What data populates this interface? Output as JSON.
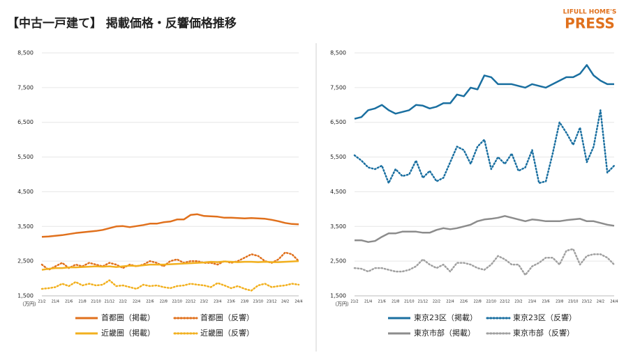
{
  "title": "【中古一戸建て】 掲載価格・反響価格推移",
  "brand": [
    "LIFULL HOME'S",
    "PRESS"
  ],
  "chart_data": [
    {
      "type": "line",
      "ylabel": "（万円）",
      "categories": [
        "21/2",
        null,
        "21/4",
        null,
        "21/6",
        null,
        "21/8",
        null,
        "21/10",
        null,
        "21/12",
        null,
        "22/2",
        null,
        "22/4",
        null,
        "22/6",
        null,
        "22/8",
        null,
        "22/10",
        null,
        "22/12",
        null,
        "23/2",
        null,
        "23/4",
        null,
        "23/6",
        null,
        "23/8",
        null,
        "23/10",
        null,
        "23/12",
        null,
        "24/2",
        null,
        "24/4"
      ],
      "ylim": [
        1500,
        8500
      ],
      "yticks": [
        {
          "value": 1500,
          "label": "1,500"
        },
        {
          "value": 2500,
          "label": "2,500"
        },
        {
          "value": 3500,
          "label": "3,500"
        },
        {
          "value": 4500,
          "label": "4,500"
        },
        {
          "value": 5500,
          "label": "5,500"
        },
        {
          "value": 6500,
          "label": "6,500"
        },
        {
          "value": 7500,
          "label": "7,500"
        },
        {
          "value": 8500,
          "label": "8,500"
        }
      ],
      "series": [
        {
          "name": "首都圏（掲載）",
          "color": "#e0701c",
          "dash": "solid",
          "values": [
            3200,
            3210,
            3230,
            3250,
            3280,
            3310,
            3330,
            3350,
            3370,
            3400,
            3450,
            3500,
            3510,
            3480,
            3510,
            3540,
            3580,
            3580,
            3620,
            3640,
            3700,
            3700,
            3830,
            3850,
            3800,
            3790,
            3780,
            3750,
            3750,
            3740,
            3730,
            3740,
            3730,
            3720,
            3690,
            3650,
            3600,
            3570,
            3560
          ]
        },
        {
          "name": "首都圏（反響）",
          "color": "#e0701c",
          "dash": "dotted",
          "values": [
            2400,
            2250,
            2350,
            2450,
            2300,
            2400,
            2350,
            2450,
            2400,
            2350,
            2450,
            2400,
            2300,
            2400,
            2350,
            2400,
            2500,
            2450,
            2350,
            2500,
            2550,
            2450,
            2500,
            2500,
            2450,
            2450,
            2400,
            2500,
            2450,
            2500,
            2600,
            2700,
            2650,
            2500,
            2450,
            2550,
            2750,
            2700,
            2500
          ]
        },
        {
          "name": "近畿圏（掲載）",
          "color": "#f2b01e",
          "dash": "solid",
          "values": [
            2250,
            2280,
            2300,
            2300,
            2320,
            2320,
            2330,
            2340,
            2350,
            2340,
            2350,
            2330,
            2350,
            2370,
            2360,
            2380,
            2400,
            2400,
            2400,
            2410,
            2420,
            2430,
            2440,
            2450,
            2460,
            2480,
            2470,
            2490,
            2480,
            2470,
            2480,
            2480,
            2470,
            2480,
            2470,
            2470,
            2480,
            2490,
            2500
          ]
        },
        {
          "name": "近畿圏（反響）",
          "color": "#f2b01e",
          "dash": "dotted",
          "values": [
            1700,
            1720,
            1750,
            1850,
            1780,
            1900,
            1800,
            1850,
            1800,
            1820,
            1950,
            1780,
            1800,
            1750,
            1700,
            1820,
            1780,
            1800,
            1750,
            1720,
            1780,
            1800,
            1850,
            1820,
            1800,
            1750,
            1870,
            1800,
            1720,
            1780,
            1700,
            1650,
            1800,
            1850,
            1750,
            1780,
            1800,
            1850,
            1820
          ]
        }
      ]
    },
    {
      "type": "line",
      "ylabel": "（万円）",
      "categories": [
        "21/2",
        null,
        "21/4",
        null,
        "21/6",
        null,
        "21/8",
        null,
        "21/10",
        null,
        "21/12",
        null,
        "22/2",
        null,
        "22/4",
        null,
        "22/6",
        null,
        "22/8",
        null,
        "22/10",
        null,
        "22/12",
        null,
        "23/2",
        null,
        "23/4",
        null,
        "23/6",
        null,
        "23/8",
        null,
        "23/10",
        null,
        "23/12",
        null,
        "24/2",
        null,
        "24/4"
      ],
      "ylim": [
        1500,
        8500
      ],
      "yticks": [
        {
          "value": 1500,
          "label": "1,500"
        },
        {
          "value": 2500,
          "label": "2,500"
        },
        {
          "value": 3500,
          "label": "3,500"
        },
        {
          "value": 4500,
          "label": "4,500"
        },
        {
          "value": 5500,
          "label": "5,500"
        },
        {
          "value": 6500,
          "label": "6,500"
        },
        {
          "value": 7500,
          "label": "7,500"
        },
        {
          "value": 8500,
          "label": "8,500"
        }
      ],
      "series": [
        {
          "name": "東京23区（掲載）",
          "color": "#1a6fa0",
          "dash": "solid",
          "values": [
            6600,
            6650,
            6850,
            6900,
            7000,
            6850,
            6750,
            6800,
            6850,
            7000,
            6980,
            6900,
            6950,
            7050,
            7050,
            7300,
            7250,
            7500,
            7450,
            7850,
            7800,
            7600,
            7600,
            7600,
            7550,
            7500,
            7600,
            7550,
            7500,
            7600,
            7700,
            7800,
            7800,
            7900,
            8150,
            7850,
            7700,
            7600,
            7600
          ]
        },
        {
          "name": "東京23区（反響）",
          "color": "#1a6fa0",
          "dash": "dotted",
          "values": [
            5550,
            5400,
            5200,
            5150,
            5250,
            4750,
            5150,
            4950,
            5000,
            5400,
            4900,
            5100,
            4800,
            4900,
            5350,
            5800,
            5700,
            5300,
            5800,
            6000,
            5150,
            5500,
            5300,
            5600,
            5100,
            5200,
            5700,
            4750,
            4800,
            5600,
            6500,
            6200,
            5850,
            6350,
            5350,
            5800,
            6850,
            5050,
            5250
          ]
        },
        {
          "name": "東京市部（掲載）",
          "color": "#8c8c8c",
          "dash": "solid",
          "values": [
            3100,
            3100,
            3050,
            3080,
            3200,
            3300,
            3300,
            3350,
            3350,
            3350,
            3320,
            3320,
            3400,
            3450,
            3420,
            3450,
            3500,
            3550,
            3650,
            3700,
            3720,
            3750,
            3800,
            3750,
            3700,
            3650,
            3700,
            3680,
            3650,
            3650,
            3650,
            3680,
            3700,
            3720,
            3650,
            3650,
            3600,
            3550,
            3520
          ]
        },
        {
          "name": "東京市部（反響）",
          "color": "#a0a0a0",
          "dash": "dotted",
          "values": [
            2300,
            2280,
            2200,
            2300,
            2300,
            2250,
            2200,
            2200,
            2250,
            2350,
            2550,
            2400,
            2300,
            2400,
            2200,
            2450,
            2450,
            2400,
            2300,
            2250,
            2400,
            2650,
            2550,
            2400,
            2400,
            2100,
            2350,
            2450,
            2600,
            2600,
            2400,
            2800,
            2850,
            2400,
            2650,
            2700,
            2700,
            2600,
            2400
          ]
        }
      ]
    }
  ]
}
